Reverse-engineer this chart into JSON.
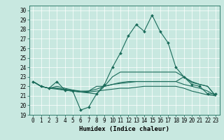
{
  "title": "",
  "xlabel": "Humidex (Indice chaleur)",
  "ylabel": "",
  "bg_color": "#c8e8e0",
  "line_color": "#1a6b5a",
  "grid_color": "#ffffff",
  "xlim": [
    -0.5,
    23.5
  ],
  "ylim": [
    19,
    30.5
  ],
  "yticks": [
    19,
    20,
    21,
    22,
    23,
    24,
    25,
    26,
    27,
    28,
    29,
    30
  ],
  "xticks": [
    0,
    1,
    2,
    3,
    4,
    5,
    6,
    7,
    8,
    9,
    10,
    11,
    12,
    13,
    14,
    15,
    16,
    17,
    18,
    19,
    20,
    21,
    22,
    23
  ],
  "xtick_labels": [
    "0",
    "1",
    "2",
    "3",
    "4",
    "5",
    "6",
    "7",
    "8",
    "9",
    "10",
    "11",
    "12",
    "13",
    "14",
    "15",
    "16",
    "17",
    "18",
    "19",
    "20",
    "21",
    "22",
    "23"
  ],
  "series": [
    [
      22.5,
      22.0,
      21.8,
      22.5,
      21.6,
      21.5,
      19.5,
      19.8,
      21.2,
      22.2,
      24.0,
      25.5,
      27.3,
      28.5,
      27.8,
      29.5,
      27.8,
      26.6,
      24.0,
      23.0,
      22.2,
      22.0,
      21.2,
      21.2
    ],
    [
      22.5,
      22.0,
      21.8,
      21.8,
      21.7,
      21.6,
      21.5,
      21.5,
      21.7,
      22.0,
      22.2,
      22.3,
      22.4,
      22.5,
      22.5,
      22.5,
      22.5,
      22.5,
      22.5,
      23.0,
      22.4,
      22.2,
      22.0,
      21.0
    ],
    [
      22.5,
      22.0,
      21.8,
      21.7,
      21.6,
      21.5,
      21.4,
      21.4,
      21.5,
      21.6,
      21.7,
      21.8,
      21.8,
      21.9,
      22.0,
      22.0,
      22.0,
      22.0,
      22.0,
      21.8,
      21.5,
      21.3,
      21.1,
      21.0
    ],
    [
      22.5,
      22.0,
      21.8,
      22.0,
      21.8,
      21.6,
      21.4,
      21.3,
      21.2,
      22.0,
      23.0,
      23.5,
      23.5,
      23.5,
      23.5,
      23.5,
      23.5,
      23.5,
      23.5,
      23.0,
      22.5,
      22.2,
      22.0,
      21.0
    ],
    [
      22.5,
      22.0,
      21.8,
      21.8,
      21.6,
      21.5,
      21.4,
      21.5,
      22.0,
      22.0,
      22.2,
      22.4,
      22.5,
      22.5,
      22.5,
      22.5,
      22.5,
      22.5,
      22.5,
      22.2,
      22.0,
      21.8,
      21.5,
      21.0
    ]
  ],
  "marker": "D",
  "marker_size": 2.0,
  "line_width": 0.8,
  "tick_fontsize": 5.5,
  "xlabel_fontsize": 6.5
}
